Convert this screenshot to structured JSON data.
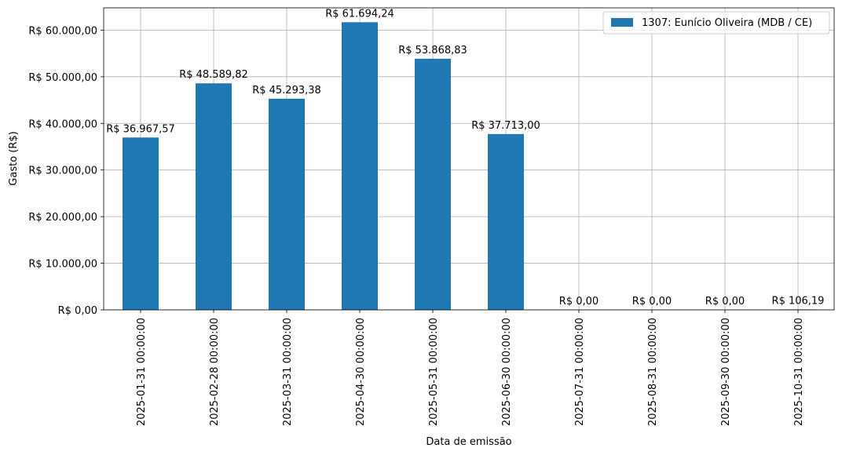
{
  "chart_data": {
    "type": "bar",
    "categories": [
      "2025-01-31 00:00:00",
      "2025-02-28 00:00:00",
      "2025-03-31 00:00:00",
      "2025-04-30 00:00:00",
      "2025-05-31 00:00:00",
      "2025-06-30 00:00:00",
      "2025-07-31 00:00:00",
      "2025-08-31 00:00:00",
      "2025-09-30 00:00:00",
      "2025-10-31 00:00:00"
    ],
    "series": [
      {
        "name": "1307: Eunício Oliveira (MDB / CE)",
        "color": "#1f77b4",
        "values": [
          36967.57,
          48589.82,
          45293.38,
          61694.24,
          53868.83,
          37713.0,
          0,
          0,
          0,
          106.19
        ],
        "labels": [
          "R$ 36.967,57",
          "R$ 48.589,82",
          "R$ 45.293,38",
          "R$ 61.694,24",
          "R$ 53.868,83",
          "R$ 37.713,00",
          "R$ 0,00",
          "R$ 0,00",
          "R$ 0,00",
          "R$ 106,19"
        ]
      }
    ],
    "yticks": [
      {
        "value": 0,
        "label": "R$ 0,00"
      },
      {
        "value": 10000,
        "label": "R$ 10.000,00"
      },
      {
        "value": 20000,
        "label": "R$ 20.000,00"
      },
      {
        "value": 30000,
        "label": "R$ 30.000,00"
      },
      {
        "value": 40000,
        "label": "R$ 40.000,00"
      },
      {
        "value": 50000,
        "label": "R$ 50.000,00"
      },
      {
        "value": 60000,
        "label": "R$ 60.000,00"
      }
    ],
    "ylim": [
      0,
      64778.95
    ],
    "xlabel": "Data de emissão",
    "ylabel": "Gasto (R$)",
    "grid": true,
    "legend_position": "top-right"
  }
}
